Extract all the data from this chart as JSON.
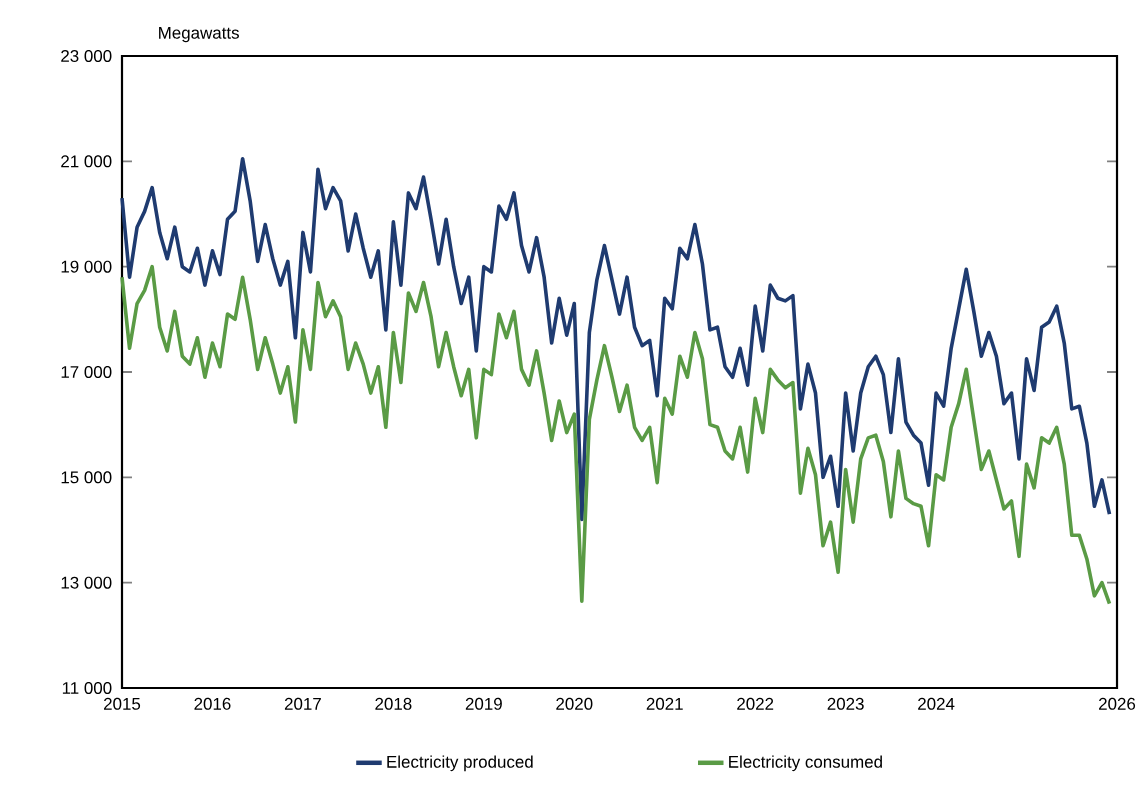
{
  "chart_data": {
    "type": "line",
    "ylabel": "Megawatts",
    "x": [
      "2015-01",
      "2015-02",
      "2015-03",
      "2015-04",
      "2015-05",
      "2015-06",
      "2015-07",
      "2015-08",
      "2015-09",
      "2015-10",
      "2015-11",
      "2015-12",
      "2016-01",
      "2016-02",
      "2016-03",
      "2016-04",
      "2016-05",
      "2016-06",
      "2016-07",
      "2016-08",
      "2016-09",
      "2016-10",
      "2016-11",
      "2016-12",
      "2017-01",
      "2017-02",
      "2017-03",
      "2017-04",
      "2017-05",
      "2017-06",
      "2017-07",
      "2017-08",
      "2017-09",
      "2017-10",
      "2017-11",
      "2017-12",
      "2018-01",
      "2018-02",
      "2018-03",
      "2018-04",
      "2018-05",
      "2018-06",
      "2018-07",
      "2018-08",
      "2018-09",
      "2018-10",
      "2018-11",
      "2018-12",
      "2019-01",
      "2019-02",
      "2019-03",
      "2019-04",
      "2019-05",
      "2019-06",
      "2019-07",
      "2019-08",
      "2019-09",
      "2019-10",
      "2019-11",
      "2019-12",
      "2020-01",
      "2020-02",
      "2020-03",
      "2020-04",
      "2020-05",
      "2020-06",
      "2020-07",
      "2020-08",
      "2020-09",
      "2020-10",
      "2020-11",
      "2020-12",
      "2021-01",
      "2021-02",
      "2021-03",
      "2021-04",
      "2021-05",
      "2021-06",
      "2021-07",
      "2021-08",
      "2021-09",
      "2021-10",
      "2021-11",
      "2021-12",
      "2022-01",
      "2022-02",
      "2022-03",
      "2022-04",
      "2022-05",
      "2022-06",
      "2022-07",
      "2022-08",
      "2022-09",
      "2022-10",
      "2022-11",
      "2022-12",
      "2023-01",
      "2023-02",
      "2023-03",
      "2023-04",
      "2023-05",
      "2023-06",
      "2023-07",
      "2023-08",
      "2023-09",
      "2023-10",
      "2023-11",
      "2023-12",
      "2024-01",
      "2024-02",
      "2024-03",
      "2024-04",
      "2024-05",
      "2024-06",
      "2024-07",
      "2024-08",
      "2024-09",
      "2024-10",
      "2024-11",
      "2024-12",
      "2025-01",
      "2025-02",
      "2025-03",
      "2025-04",
      "2025-05",
      "2025-06",
      "2025-07",
      "2025-08",
      "2025-09",
      "2025-10",
      "2025-11",
      "2025-12"
    ],
    "series": [
      {
        "name": "Electricity produced",
        "color": "#1f3b70",
        "values": [
          20300,
          18800,
          19750,
          20050,
          20500,
          19650,
          19150,
          19750,
          19000,
          18900,
          19350,
          18650,
          19300,
          18850,
          19900,
          20050,
          21050,
          20250,
          19100,
          19800,
          19150,
          18650,
          19100,
          17650,
          19650,
          18900,
          20850,
          20100,
          20500,
          20250,
          19300,
          20000,
          19350,
          18800,
          19300,
          17800,
          19850,
          18650,
          20400,
          20100,
          20700,
          19900,
          19050,
          19900,
          19000,
          18300,
          18800,
          17400,
          19000,
          18900,
          20150,
          19900,
          20400,
          19400,
          18900,
          19550,
          18800,
          17550,
          18400,
          17700,
          18300,
          14200,
          17750,
          18750,
          19400,
          18750,
          18100,
          18800,
          17850,
          17500,
          17600,
          16550,
          18400,
          18200,
          19350,
          19150,
          19800,
          19050,
          17800,
          17850,
          17100,
          16900,
          17450,
          16750,
          18250,
          17400,
          18650,
          18400,
          18350,
          18450,
          16300,
          17150,
          16600,
          15000,
          15400,
          14450,
          16600,
          15500,
          16600,
          17100,
          17300,
          16950,
          15850,
          17250,
          16050,
          15800,
          15650,
          14850,
          16600,
          16350,
          17450,
          18200,
          18950,
          18150,
          17300,
          17750,
          17300,
          16400,
          16600,
          15350,
          17250,
          16650,
          17850,
          17950,
          18250,
          17550,
          16300,
          16350,
          15650,
          14450,
          14950,
          14300
        ]
      },
      {
        "name": "Electricity consumed",
        "color": "#5a9b45",
        "values": [
          18800,
          17450,
          18300,
          18550,
          19000,
          17850,
          17400,
          18150,
          17300,
          17150,
          17650,
          16900,
          17550,
          17100,
          18100,
          18000,
          18800,
          18000,
          17050,
          17650,
          17150,
          16600,
          17100,
          16050,
          17800,
          17050,
          18700,
          18050,
          18350,
          18050,
          17050,
          17550,
          17150,
          16600,
          17100,
          15950,
          17750,
          16800,
          18500,
          18150,
          18700,
          18050,
          17100,
          17750,
          17100,
          16550,
          17050,
          15750,
          17050,
          16950,
          18100,
          17650,
          18150,
          17050,
          16750,
          17400,
          16600,
          15700,
          16450,
          15850,
          16200,
          12650,
          16100,
          16850,
          17500,
          16900,
          16250,
          16750,
          15950,
          15700,
          15950,
          14900,
          16500,
          16200,
          17300,
          16900,
          17750,
          17250,
          16000,
          15950,
          15500,
          15350,
          15950,
          15100,
          16500,
          15850,
          17050,
          16850,
          16700,
          16800,
          14700,
          15550,
          15050,
          13700,
          14150,
          13200,
          15150,
          14150,
          15350,
          15750,
          15800,
          15300,
          14250,
          15500,
          14600,
          14500,
          14450,
          13700,
          15050,
          14950,
          15950,
          16400,
          17050,
          16100,
          15150,
          15500,
          14950,
          14400,
          14550,
          13500,
          15250,
          14800,
          15750,
          15650,
          15950,
          15250,
          13900,
          13900,
          13450,
          12750,
          13000,
          12600
        ]
      }
    ],
    "xlim": [
      "2015-01",
      "2026-01"
    ],
    "xticks": [
      "2015",
      "2016",
      "2017",
      "2018",
      "2019",
      "2020",
      "2021",
      "2022",
      "2023",
      "2024",
      "2026"
    ],
    "ylim": [
      11000,
      23000
    ],
    "yticks": [
      {
        "value": 11000,
        "label": "11 000"
      },
      {
        "value": 13000,
        "label": "13 000"
      },
      {
        "value": 15000,
        "label": "15 000"
      },
      {
        "value": 17000,
        "label": "17 000"
      },
      {
        "value": 19000,
        "label": "19 000"
      },
      {
        "value": 21000,
        "label": "21 000"
      },
      {
        "value": 23000,
        "label": "23 000"
      }
    ],
    "legend": "bottom",
    "grid": false,
    "marker": "none",
    "line_style": "solid"
  }
}
